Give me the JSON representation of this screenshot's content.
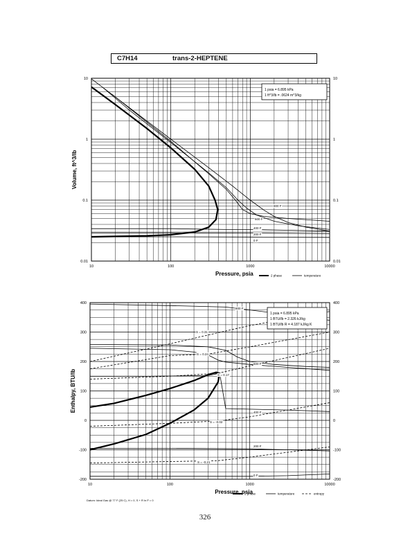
{
  "header": {
    "formula": "C7H14",
    "compound": "trans-2-HEPTENE"
  },
  "page_number": "326",
  "chart_data": [
    {
      "id": "volume",
      "type": "line",
      "xscale": "log",
      "yscale": "log",
      "xlim": [
        10,
        10000
      ],
      "ylim": [
        0.01,
        10
      ],
      "xticks": [
        "10",
        "100",
        "1000",
        "10000"
      ],
      "yticks": [
        "0.01",
        "0.1",
        "1",
        "10"
      ],
      "xlabel": "Pressure,  psia",
      "ylabel": "Volume,  ft^3/lb",
      "grid": true,
      "note_lines": [
        "1 psia = 6.895 kPa",
        "1 ft^3/lb = .0624 m^3/kg"
      ],
      "legend": [
        {
          "label": "2 phase",
          "style": "bold"
        },
        {
          "label": "temperature",
          "style": "solid"
        }
      ],
      "series": [
        {
          "name": "2 phase",
          "style": "bold",
          "points": [
            [
              10,
              7.2
            ],
            [
              20,
              3.7
            ],
            [
              50,
              1.5
            ],
            [
              100,
              0.72
            ],
            [
              200,
              0.32
            ],
            [
              300,
              0.17
            ],
            [
              360,
              0.1
            ],
            [
              390,
              0.07
            ],
            [
              370,
              0.048
            ],
            [
              300,
              0.036
            ],
            [
              200,
              0.03
            ],
            [
              100,
              0.027
            ],
            [
              50,
              0.026
            ],
            [
              10,
              0.025
            ]
          ]
        },
        {
          "name": "800 F",
          "label": "800 F",
          "style": "solid",
          "points": [
            [
              10,
              9.8
            ],
            [
              30,
              3.3
            ],
            [
              100,
              1
            ],
            [
              300,
              0.34
            ],
            [
              600,
              0.17
            ],
            [
              1000,
              0.1
            ],
            [
              1500,
              0.068
            ],
            [
              2000,
              0.054
            ],
            [
              3000,
              0.043
            ],
            [
              5000,
              0.036
            ],
            [
              10000,
              0.031
            ]
          ]
        },
        {
          "name": "600 F",
          "label": "600 F",
          "style": "solid",
          "points": [
            [
              14,
              7
            ],
            [
              30,
              3
            ],
            [
              100,
              0.88
            ],
            [
              300,
              0.28
            ],
            [
              500,
              0.16
            ],
            [
              700,
              0.1
            ],
            [
              900,
              0.074
            ],
            [
              1200,
              0.057
            ],
            [
              2000,
              0.045
            ],
            [
              4000,
              0.038
            ],
            [
              10000,
              0.033
            ]
          ]
        },
        {
          "name": "500 F",
          "style": "solid",
          "points": [
            [
              18,
              5.5
            ],
            [
              40,
              2.4
            ],
            [
              100,
              0.92
            ],
            [
              300,
              0.27
            ],
            [
              500,
              0.15
            ],
            [
              650,
              0.1
            ],
            [
              800,
              0.07
            ],
            [
              1000,
              0.06
            ],
            [
              1500,
              0.054
            ],
            [
              3000,
              0.05
            ],
            [
              10000,
              0.045
            ]
          ]
        },
        {
          "name": "400 F",
          "label": "400 F",
          "style": "solid",
          "points": [
            [
              10,
              0.034
            ],
            [
              100,
              0.034
            ],
            [
              500,
              0.033
            ],
            [
              1000,
              0.033
            ],
            [
              3000,
              0.032
            ],
            [
              10000,
              0.031
            ]
          ]
        },
        {
          "name": "200 F",
          "label": "200 F",
          "style": "solid",
          "points": [
            [
              10,
              0.029
            ],
            [
              100,
              0.029
            ],
            [
              1000,
              0.0288
            ],
            [
              10000,
              0.0282
            ]
          ]
        },
        {
          "name": "0 F",
          "label": "0 F",
          "style": "solid",
          "points": [
            [
              10,
              0.025
            ],
            [
              100,
              0.025
            ],
            [
              1000,
              0.0248
            ],
            [
              10000,
              0.0245
            ]
          ]
        }
      ]
    },
    {
      "id": "enthalpy",
      "type": "line",
      "xscale": "log",
      "yscale": "linear",
      "xlim": [
        10,
        10000
      ],
      "ylim": [
        -200,
        400
      ],
      "xticks": [
        "10",
        "100",
        "1000",
        "10000"
      ],
      "yticks": [
        "-200",
        "-100",
        "0",
        "100",
        "200",
        "300",
        "400"
      ],
      "xlabel": "Pressure,  psia",
      "ylabel": "Enthalpy,  BTU/lb",
      "grid": true,
      "note_lines": [
        "1 psia = 6.895 kPa",
        "1 BTU/lb = 2.326 kJ/kg",
        "1 BTU/lb R = 4.187 kJ/kg K"
      ],
      "footnote": "Datum: Ideal Gas @ 77 F (25 C), H = 0, S + R ln P = 0",
      "legend": [
        {
          "label": "2 phase",
          "style": "bold"
        },
        {
          "label": "temperature",
          "style": "solid"
        },
        {
          "label": "entropy",
          "style": "dashed"
        }
      ],
      "series": [
        {
          "name": "2 phase",
          "style": "bold",
          "points": [
            [
              10,
              45
            ],
            [
              20,
              58
            ],
            [
              50,
              85
            ],
            [
              100,
              108
            ],
            [
              200,
              135
            ],
            [
              300,
              155
            ],
            [
              380,
              163
            ],
            [
              420,
              160
            ],
            [
              400,
              130
            ],
            [
              300,
              75
            ],
            [
              200,
              35
            ],
            [
              100,
              -10
            ],
            [
              50,
              -48
            ],
            [
              20,
              -80
            ],
            [
              10,
              -100
            ]
          ]
        },
        {
          "name": "800 F",
          "label": "800 F",
          "style": "solid",
          "points": [
            [
              10,
              395
            ],
            [
              100,
              390
            ],
            [
              500,
              385
            ],
            [
              1000,
              375
            ],
            [
              2000,
              365
            ],
            [
              5000,
              350
            ],
            [
              10000,
              340
            ]
          ]
        },
        {
          "name": "600 F",
          "label": "600 F",
          "style": "solid",
          "points": [
            [
              10,
              258
            ],
            [
              100,
              256
            ],
            [
              300,
              250
            ],
            [
              500,
              238
            ],
            [
              700,
              215
            ],
            [
              1000,
              200
            ],
            [
              2000,
              190
            ],
            [
              5000,
              183
            ],
            [
              10000,
              180
            ]
          ]
        },
        {
          "name": "500 F",
          "style": "solid",
          "points": [
            [
              10,
              245
            ],
            [
              100,
              240
            ],
            [
              200,
              232
            ],
            [
              300,
              222
            ],
            [
              400,
              205
            ],
            [
              500,
              198
            ],
            [
              1000,
              190
            ],
            [
              3000,
              180
            ],
            [
              10000,
              170
            ]
          ]
        },
        {
          "name": "400 F",
          "label": "400 F",
          "style": "solid",
          "points": [
            [
              10,
              150
            ],
            [
              50,
              150
            ],
            [
              300,
              152
            ],
            [
              420,
              160
            ],
            [
              500,
              40
            ],
            [
              1000,
              38
            ],
            [
              3000,
              35
            ],
            [
              10000,
              30
            ]
          ]
        },
        {
          "name": "200 F",
          "label": "200 F",
          "style": "solid",
          "points": [
            [
              10,
              -95
            ],
            [
              100,
              -95
            ],
            [
              1000,
              -97
            ],
            [
              3000,
              -100
            ],
            [
              10000,
              -104
            ]
          ]
        },
        {
          "name": "0 F",
          "label": "0 F",
          "style": "solid",
          "points": [
            [
              10,
              -190
            ],
            [
              100,
              -190
            ],
            [
              1000,
              -190
            ],
            [
              3000,
              -188
            ],
            [
              10000,
              -182
            ]
          ]
        },
        {
          "name": "S = 0.31",
          "label": "S = 0.31",
          "style": "dashed",
          "points": [
            [
              10,
              200
            ],
            [
              100,
              260
            ],
            [
              300,
              290
            ],
            [
              1000,
              322
            ],
            [
              10000,
              370
            ]
          ]
        },
        {
          "name": "S = 0.24",
          "label": "S = 0.24",
          "style": "dashed",
          "points": [
            [
              10,
              175
            ],
            [
              100,
              220
            ],
            [
              300,
              225
            ],
            [
              1000,
              250
            ],
            [
              10000,
              300
            ]
          ]
        },
        {
          "name": "S = 0.17",
          "label": "S = 0.17",
          "style": "dashed",
          "points": [
            [
              10,
              140
            ],
            [
              100,
              150
            ],
            [
              400,
              160
            ],
            [
              1000,
              185
            ],
            [
              10000,
              245
            ]
          ]
        },
        {
          "name": "S = -0.02",
          "label": "S = -0.02",
          "style": "dashed",
          "points": [
            [
              10,
              -20
            ],
            [
              100,
              -10
            ],
            [
              400,
              -2
            ],
            [
              1000,
              12
            ],
            [
              10000,
              60
            ]
          ]
        },
        {
          "name": "S = -0.21",
          "label": "S = -0.21",
          "style": "dashed",
          "points": [
            [
              10,
              -145
            ],
            [
              100,
              -140
            ],
            [
              400,
              -137
            ],
            [
              1000,
              -125
            ],
            [
              10000,
              -90
            ]
          ]
        }
      ]
    }
  ]
}
